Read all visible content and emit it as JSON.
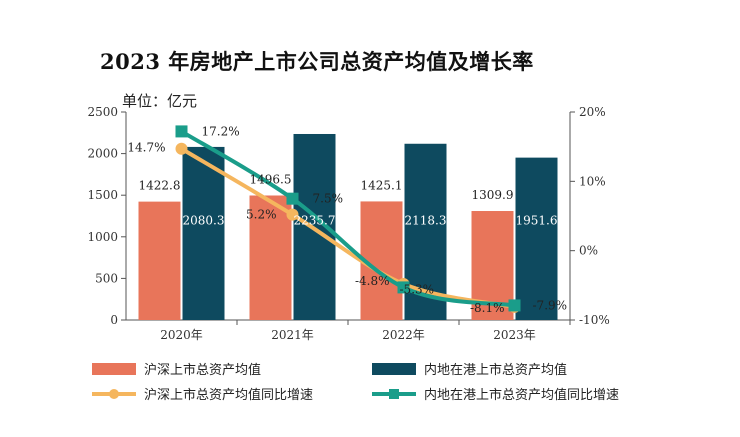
{
  "title": "2023 年房地产上市公司总资产均值及增长率",
  "unit_label": "单位：亿元",
  "colors": {
    "bar_shsz": "#E8755A",
    "bar_hk": "#0E4A5F",
    "line_shsz": "#F5B65E",
    "line_hk": "#1A9D8A"
  },
  "chart_data": {
    "type": "bar",
    "categories": [
      "2020年",
      "2021年",
      "2022年",
      "2023年"
    ],
    "series": [
      {
        "name": "沪深上市总资产均值",
        "type": "bar",
        "axis": "left",
        "values": [
          1422.8,
          1496.5,
          1425.1,
          1309.9
        ],
        "labels": [
          "1422.8",
          "1496.5",
          "1425.1",
          "1309.9"
        ]
      },
      {
        "name": "内地在港上市总资产均值",
        "type": "bar",
        "axis": "left",
        "values": [
          2080.3,
          2235.7,
          2118.3,
          1951.6
        ],
        "labels": [
          "2080.3",
          "2235.7",
          "2118.3",
          "1951.6"
        ]
      },
      {
        "name": "沪深上市总资产均值同比增速",
        "type": "line",
        "axis": "right",
        "values": [
          14.7,
          5.2,
          -4.8,
          -8.1
        ],
        "labels": [
          "14.7%",
          "5.2%",
          "-4.8%",
          "-8.1%"
        ]
      },
      {
        "name": "内地在港上市总资产均值同比增速",
        "type": "line",
        "axis": "right",
        "values": [
          17.2,
          7.5,
          -5.3,
          -7.9
        ],
        "labels": [
          "17.2%",
          "7.5%",
          "-5.3%",
          "-7.9%"
        ]
      }
    ],
    "y_left": {
      "min": 0,
      "max": 2500,
      "ticks": [
        "0",
        "500",
        "1000",
        "1500",
        "2000",
        "2500"
      ]
    },
    "y_right": {
      "min": -10,
      "max": 20,
      "ticks": [
        "-10%",
        "0%",
        "10%",
        "20%"
      ]
    },
    "grid": false,
    "legend_position": "bottom"
  }
}
